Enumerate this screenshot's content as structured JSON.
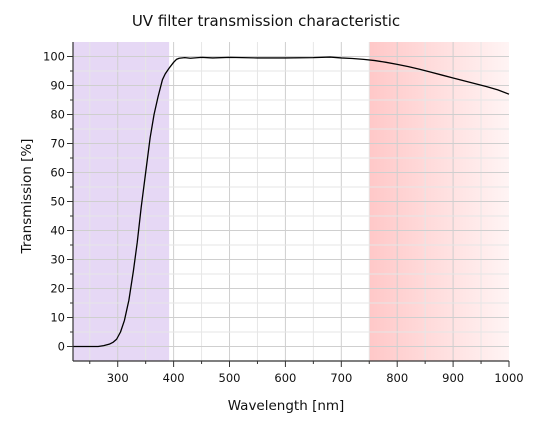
{
  "chart_data": {
    "type": "line",
    "title": "UV filter transmission characteristic",
    "xlabel": "Wavelength [nm]",
    "ylabel": "Transmission [%]",
    "xlim": [
      220,
      1000
    ],
    "ylim": [
      -5,
      105
    ],
    "x_ticks": [
      300,
      400,
      500,
      600,
      700,
      800,
      900,
      1000
    ],
    "y_ticks": [
      0,
      10,
      20,
      30,
      40,
      50,
      60,
      70,
      80,
      90,
      100
    ],
    "grid": true,
    "legend": "none",
    "series": [
      {
        "color": "#000000",
        "x": [
          220,
          250,
          265,
          275,
          285,
          292,
          298,
          305,
          312,
          320,
          328,
          335,
          342,
          350,
          358,
          365,
          372,
          380,
          385,
          392,
          400,
          405,
          410,
          420,
          430,
          450,
          470,
          500,
          550,
          600,
          650,
          680,
          700,
          720,
          740,
          760,
          780,
          800,
          820,
          840,
          860,
          880,
          900,
          920,
          940,
          960,
          980,
          1000
        ],
        "y": [
          0,
          0,
          0,
          0.3,
          0.8,
          1.5,
          2.5,
          5,
          9,
          16,
          26,
          36,
          48,
          60,
          72,
          80,
          86,
          92,
          94,
          96,
          98,
          99,
          99.4,
          99.6,
          99.4,
          99.7,
          99.5,
          99.7,
          99.5,
          99.5,
          99.6,
          99.8,
          99.5,
          99.3,
          99,
          98.6,
          98,
          97.3,
          96.5,
          95.6,
          94.6,
          93.6,
          92.6,
          91.6,
          90.6,
          89.6,
          88.5,
          87
        ]
      }
    ],
    "shaded_regions": [
      {
        "x": [
          220,
          392
        ],
        "color": "#e6d8f5"
      },
      {
        "x": [
          750,
          1000
        ],
        "color": "#ffc8c8",
        "fade_to": "#fff4f4"
      }
    ]
  }
}
